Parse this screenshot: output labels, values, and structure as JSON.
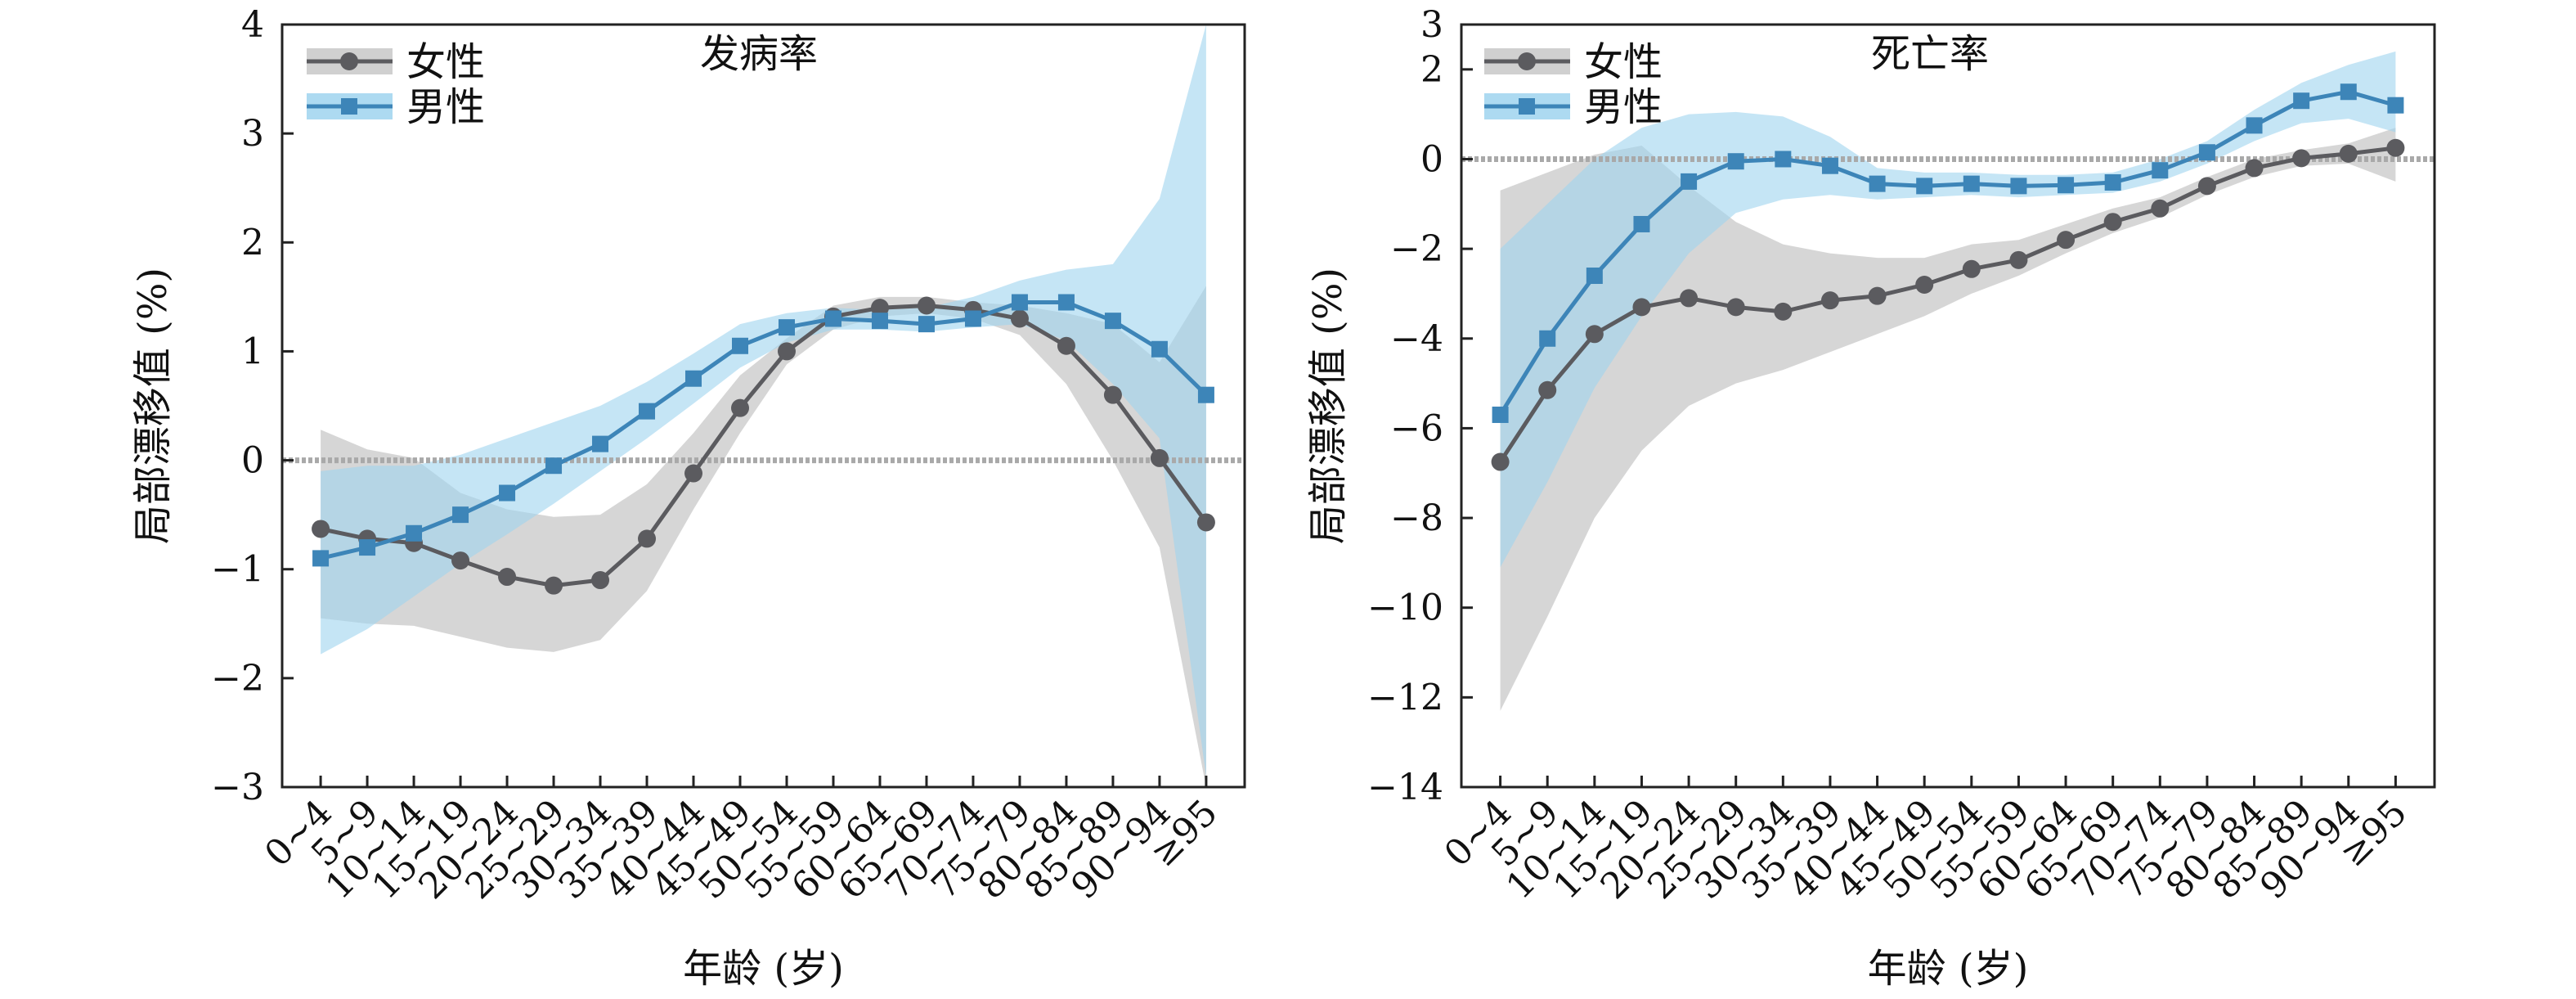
{
  "chart_data": [
    {
      "type": "line",
      "title": "发病率",
      "xlabel": "年龄 (岁)",
      "ylabel": "局部漂移值 (%)",
      "ylim": [
        -3,
        4
      ],
      "yticks": [
        -3,
        -2,
        -1,
        0,
        1,
        2,
        3,
        4
      ],
      "ytick_labels": [
        "−3",
        "−2",
        "−1",
        "0",
        "1",
        "2",
        "3",
        "4"
      ],
      "categories": [
        "0~4",
        "5~9",
        "10~14",
        "15~19",
        "20~24",
        "25~29",
        "30~34",
        "35~39",
        "40~44",
        "45~49",
        "50~54",
        "55~59",
        "60~64",
        "65~69",
        "70~74",
        "75~79",
        "80~84",
        "85~89",
        "90~94",
        "≥95"
      ],
      "reference_line": 0,
      "legend_position": "top-left",
      "series": [
        {
          "name": "女性",
          "color": "#5b5b5f",
          "band_color": "#c8c8c8",
          "values": [
            -0.63,
            -0.72,
            -0.76,
            -0.92,
            -1.07,
            -1.15,
            -1.1,
            -0.72,
            -0.12,
            0.48,
            1.0,
            1.32,
            1.4,
            1.42,
            1.38,
            1.3,
            1.05,
            0.6,
            0.02,
            -0.57
          ],
          "lower": [
            -1.45,
            -1.5,
            -1.52,
            -1.62,
            -1.72,
            -1.76,
            -1.65,
            -1.2,
            -0.45,
            0.25,
            0.88,
            1.2,
            1.32,
            1.35,
            1.3,
            1.15,
            0.7,
            0.0,
            -0.8,
            -3.0
          ],
          "upper": [
            0.28,
            0.1,
            0.02,
            -0.3,
            -0.45,
            -0.52,
            -0.5,
            -0.22,
            0.25,
            0.78,
            1.12,
            1.42,
            1.5,
            1.5,
            1.45,
            1.42,
            1.35,
            1.25,
            0.9,
            1.6
          ]
        },
        {
          "name": "男性",
          "color": "#3d85b8",
          "band_color": "#9fd3ee",
          "values": [
            -0.9,
            -0.8,
            -0.67,
            -0.5,
            -0.3,
            -0.05,
            0.15,
            0.45,
            0.75,
            1.05,
            1.22,
            1.3,
            1.28,
            1.25,
            1.3,
            1.45,
            1.45,
            1.28,
            1.02,
            0.6
          ],
          "lower": [
            -1.78,
            -1.55,
            -1.25,
            -0.95,
            -0.68,
            -0.4,
            -0.1,
            0.2,
            0.52,
            0.85,
            1.08,
            1.2,
            1.2,
            1.18,
            1.22,
            1.25,
            1.1,
            0.7,
            0.2,
            -2.9
          ],
          "upper": [
            -0.1,
            -0.05,
            -0.05,
            0.05,
            0.2,
            0.35,
            0.5,
            0.72,
            0.98,
            1.25,
            1.35,
            1.4,
            1.38,
            1.4,
            1.5,
            1.65,
            1.75,
            1.8,
            2.4,
            4.0
          ]
        }
      ]
    },
    {
      "type": "line",
      "title": "死亡率",
      "xlabel": "年龄 (岁)",
      "ylabel": "局部漂移值 (%)",
      "ylim": [
        -14,
        3
      ],
      "yticks": [
        -14,
        -12,
        -10,
        -8,
        -6,
        -4,
        -2,
        0,
        2,
        3
      ],
      "ytick_labels": [
        "−14",
        "−12",
        "−10",
        "−8",
        "−6",
        "−4",
        "−2",
        "0",
        "2",
        "3"
      ],
      "categories": [
        "0~4",
        "5~9",
        "10~14",
        "15~19",
        "20~24",
        "25~29",
        "30~34",
        "35~39",
        "40~44",
        "45~49",
        "50~54",
        "55~59",
        "60~64",
        "65~69",
        "70~74",
        "75~79",
        "80~84",
        "85~89",
        "90~94",
        "≥95"
      ],
      "reference_line": 0,
      "legend_position": "top-left",
      "series": [
        {
          "name": "女性",
          "color": "#5b5b5f",
          "band_color": "#c8c8c8",
          "values": [
            -6.75,
            -5.15,
            -3.9,
            -3.3,
            -3.1,
            -3.3,
            -3.4,
            -3.15,
            -3.05,
            -2.8,
            -2.45,
            -2.25,
            -1.8,
            -1.4,
            -1.1,
            -0.6,
            -0.2,
            0.02,
            0.12,
            0.25
          ],
          "lower": [
            -12.3,
            -10.2,
            -8.0,
            -6.5,
            -5.5,
            -5.0,
            -4.7,
            -4.3,
            -3.9,
            -3.5,
            -3.0,
            -2.6,
            -2.1,
            -1.65,
            -1.3,
            -0.8,
            -0.4,
            -0.15,
            -0.1,
            -0.5
          ],
          "upper": [
            -0.7,
            -0.3,
            0.1,
            0.3,
            -0.6,
            -1.4,
            -1.9,
            -2.1,
            -2.2,
            -2.2,
            -1.9,
            -1.8,
            -1.45,
            -1.1,
            -0.85,
            -0.4,
            0.0,
            0.2,
            0.35,
            0.7
          ]
        },
        {
          "name": "男性",
          "color": "#3d85b8",
          "band_color": "#9fd3ee",
          "values": [
            -5.7,
            -4.0,
            -2.6,
            -1.45,
            -0.5,
            -0.05,
            0.0,
            -0.15,
            -0.55,
            -0.6,
            -0.55,
            -0.6,
            -0.58,
            -0.52,
            -0.25,
            0.15,
            0.75,
            1.3,
            1.5,
            1.2
          ],
          "lower": [
            -9.1,
            -7.2,
            -5.1,
            -3.5,
            -2.1,
            -1.2,
            -0.9,
            -0.8,
            -0.9,
            -0.85,
            -0.8,
            -0.85,
            -0.8,
            -0.75,
            -0.5,
            -0.1,
            0.4,
            0.8,
            0.9,
            0.6
          ],
          "upper": [
            -2.0,
            -1.0,
            0.0,
            0.7,
            1.0,
            1.05,
            0.95,
            0.5,
            -0.2,
            -0.3,
            -0.3,
            -0.35,
            -0.35,
            -0.3,
            0.0,
            0.4,
            1.1,
            1.7,
            2.1,
            2.4
          ]
        }
      ]
    }
  ]
}
